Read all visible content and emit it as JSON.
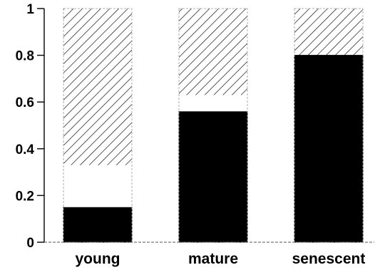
{
  "chart_data": {
    "type": "bar",
    "stacked": true,
    "normalized": true,
    "categories": [
      "young",
      "mature",
      "senescent"
    ],
    "series": [
      {
        "fill": "solid",
        "color": "#000000",
        "values": [
          0.15,
          0.56,
          0.8
        ]
      },
      {
        "fill": "empty",
        "color": "#ffffff",
        "values": [
          0.18,
          0.07,
          0.0
        ]
      },
      {
        "fill": "hatched",
        "color": "#000000",
        "values": [
          0.67,
          0.37,
          0.2
        ]
      }
    ],
    "title": "",
    "xlabel": "",
    "ylabel": "",
    "ylim": [
      0,
      1
    ],
    "yticks": [
      0,
      0.2,
      0.4,
      0.6,
      0.8,
      1
    ],
    "ytick_labels": [
      "0",
      "0.2",
      "0.4",
      "0.6",
      "0.8",
      "1"
    ],
    "grid": false,
    "legend": "none"
  }
}
